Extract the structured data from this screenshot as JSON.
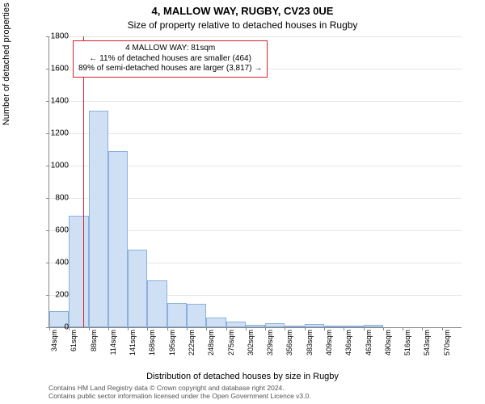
{
  "title": "4, MALLOW WAY, RUGBY, CV23 0UE",
  "subtitle": "Size of property relative to detached houses in Rugby",
  "ylabel": "Number of detached properties",
  "xlabel": "Distribution of detached houses by size in Rugby",
  "footer_line1": "Contains HM Land Registry data © Crown copyright and database right 2024.",
  "footer_line2": "Contains public sector information licensed under the Open Government Licence v3.0.",
  "annot": {
    "l1": "4 MALLOW WAY: 81sqm",
    "l2": "← 11% of detached houses are smaller (464)",
    "l3": "89% of semi-detached houses are larger (3,817) →"
  },
  "chart": {
    "type": "histogram",
    "ylim": [
      0,
      1800
    ],
    "ytick_step": 200,
    "yticks": [
      0,
      200,
      400,
      600,
      800,
      1000,
      1200,
      1400,
      1600,
      1800
    ],
    "xticks": [
      "34sqm",
      "61sqm",
      "88sqm",
      "114sqm",
      "141sqm",
      "168sqm",
      "195sqm",
      "222sqm",
      "248sqm",
      "275sqm",
      "302sqm",
      "329sqm",
      "356sqm",
      "383sqm",
      "409sqm",
      "436sqm",
      "463sqm",
      "490sqm",
      "516sqm",
      "543sqm",
      "570sqm"
    ],
    "bar_values": [
      100,
      690,
      1340,
      1090,
      480,
      290,
      150,
      145,
      60,
      35,
      15,
      25,
      5,
      20,
      10,
      5,
      15,
      0,
      0,
      0,
      0
    ],
    "bar_color": "#cfe0f5",
    "bar_border": "#8bb0dc",
    "ref_value_x": 81,
    "ref_color": "#d6212a",
    "x_min": 34,
    "x_step": 27,
    "background": "#ffffff",
    "grid_color": "#e6e6e6"
  }
}
